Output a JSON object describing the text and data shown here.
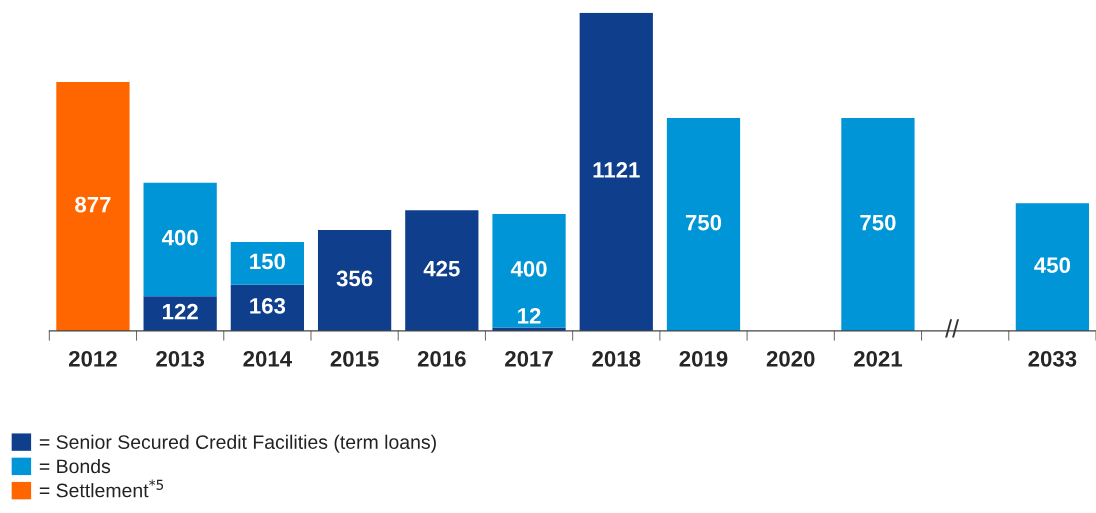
{
  "chart_data": {
    "type": "bar",
    "stacked": true,
    "data_labels": true,
    "legend": "bottom left",
    "categories": [
      "2012",
      "2013",
      "2014",
      "2015",
      "2016",
      "2017",
      "2018",
      "2019",
      "2020",
      "2021",
      null,
      "2033"
    ],
    "series": [
      {
        "name": "= Senior Secured Credit Facilities (term loans)",
        "color": "#0f3f8c",
        "values": [
          null,
          122,
          163,
          356,
          425,
          12,
          1121,
          null,
          null,
          null,
          null,
          null
        ]
      },
      {
        "name": "= Bonds",
        "color": "#0095d6",
        "values": [
          null,
          400,
          150,
          null,
          null,
          400,
          null,
          750,
          null,
          750,
          null,
          450
        ]
      },
      {
        "name": "= Settlement$^{*5}$",
        "color": "#ff6600",
        "values": [
          877,
          null,
          null,
          null,
          null,
          null,
          null,
          null,
          null,
          null,
          null,
          null
        ]
      }
    ],
    "annotations": [
      "//"
    ]
  }
}
